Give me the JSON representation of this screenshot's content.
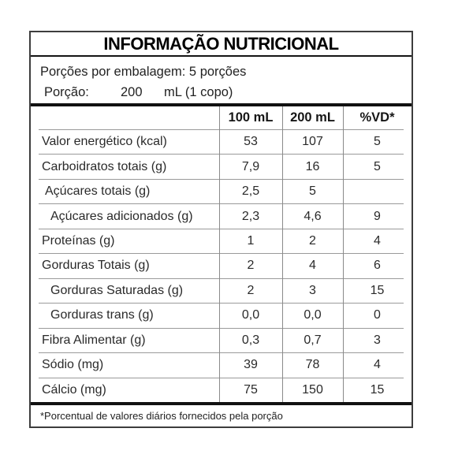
{
  "panel": {
    "title": "INFORMAÇÃO NUTRICIONAL",
    "servings_line": "Porções por embalagem: 5 porções",
    "portion": {
      "label": "Porção:",
      "amount": "200",
      "unit": "mL (1 copo)"
    },
    "footnote": "*Porcentual de valores diários fornecidos pela porção",
    "colors": {
      "rule_thick": "#111111",
      "rule_thin": "#9a9a9a",
      "border": "#3d3d3d",
      "text": "#1f1f1f"
    }
  },
  "table": {
    "columns": [
      "100 mL",
      "200 mL",
      "%VD*"
    ],
    "rows": [
      {
        "label": "Valor energético (kcal)",
        "per100": "53",
        "per200": "107",
        "vd": "5",
        "indent": 0
      },
      {
        "label": "Carboidratos totais (g)",
        "per100": "7,9",
        "per200": "16",
        "vd": "5",
        "indent": 0
      },
      {
        "label": "Açúcares totais (g)",
        "per100": "2,5",
        "per200": "5",
        "vd": "",
        "indent": 1
      },
      {
        "label": "Açúcares adicionados (g)",
        "per100": "2,3",
        "per200": "4,6",
        "vd": "9",
        "indent": 2
      },
      {
        "label": "Proteínas (g)",
        "per100": "1",
        "per200": "2",
        "vd": "4",
        "indent": 0
      },
      {
        "label": "Gorduras Totais (g)",
        "per100": "2",
        "per200": "4",
        "vd": "6",
        "indent": 0
      },
      {
        "label": "Gorduras Saturadas (g)",
        "per100": "2",
        "per200": "3",
        "vd": "15",
        "indent": 2
      },
      {
        "label": "Gorduras trans (g)",
        "per100": "0,0",
        "per200": "0,0",
        "vd": "0",
        "indent": 2
      },
      {
        "label": "Fibra Alimentar (g)",
        "per100": "0,3",
        "per200": "0,7",
        "vd": "3",
        "indent": 0
      },
      {
        "label": "Sódio (mg)",
        "per100": "39",
        "per200": "78",
        "vd": "4",
        "indent": 0
      },
      {
        "label": "Cálcio (mg)",
        "per100": "75",
        "per200": "150",
        "vd": "15",
        "indent": 0
      }
    ]
  }
}
